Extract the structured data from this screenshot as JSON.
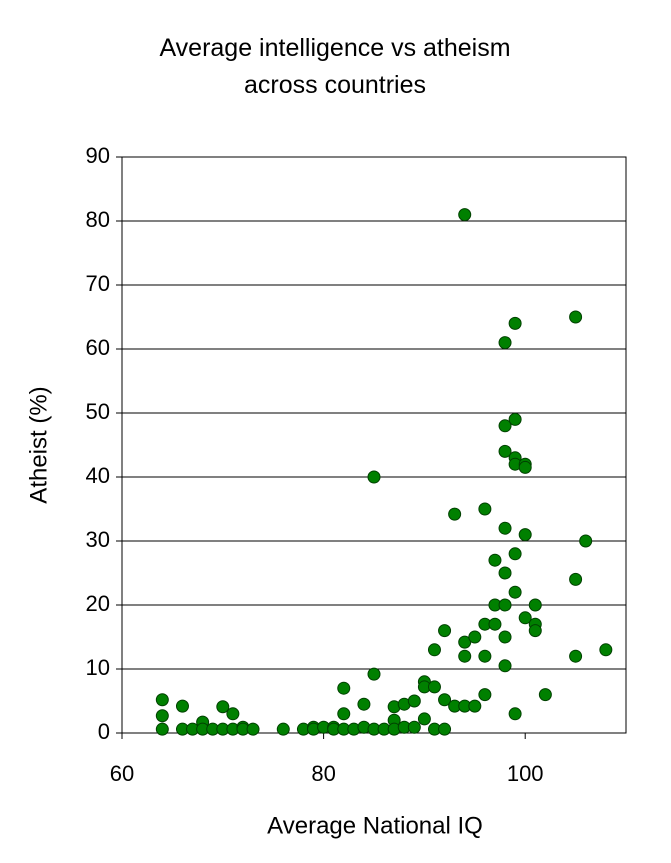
{
  "chart_data": {
    "type": "scatter",
    "title": "Average intelligence vs atheism across countries",
    "x_label": "Average National IQ",
    "y_label": "Atheist (%)",
    "color": "#008000",
    "grid": true,
    "xlim": [
      60,
      110
    ],
    "xticks": [
      60,
      80,
      100
    ],
    "ylim": [
      0,
      90
    ],
    "yticks": [
      0,
      10,
      20,
      30,
      40,
      50,
      60,
      70,
      80,
      90
    ],
    "x": [
      64,
      64,
      64,
      66,
      66,
      67,
      68,
      68,
      69,
      70,
      70,
      71,
      71,
      72,
      72,
      73,
      76,
      78,
      79,
      79,
      80,
      81,
      81,
      82,
      82,
      82,
      83,
      84,
      84,
      85,
      85,
      85,
      86,
      87,
      87,
      87,
      88,
      88,
      89,
      89,
      90,
      90,
      90,
      91,
      91,
      91,
      92,
      92,
      92,
      93,
      93,
      94,
      94,
      94,
      94,
      95,
      95,
      96,
      96,
      96,
      96,
      97,
      97,
      97,
      98,
      98,
      98,
      98,
      98,
      98,
      98,
      98,
      99,
      99,
      99,
      99,
      99,
      99,
      99,
      100,
      100,
      100,
      100,
      101,
      101,
      101,
      102,
      105,
      105,
      105,
      106,
      108
    ],
    "y": [
      5.2,
      2.7,
      0.6,
      4.2,
      0.6,
      0.6,
      1.7,
      0.6,
      0.6,
      4.1,
      0.6,
      3,
      0.6,
      0.9,
      0.6,
      0.6,
      0.6,
      0.6,
      0.9,
      0.6,
      0.9,
      0.9,
      0.6,
      7,
      3,
      0.6,
      0.6,
      4.5,
      0.9,
      40,
      9.2,
      0.6,
      0.6,
      2,
      4.1,
      0.6,
      4.5,
      0.9,
      5,
      0.9,
      8,
      7.2,
      2.2,
      13,
      7.2,
      0.6,
      16,
      5.2,
      0.6,
      34.2,
      4.2,
      81,
      14.2,
      12,
      4.2,
      15,
      4.2,
      35,
      17,
      12,
      6,
      27,
      20,
      17,
      61,
      48,
      44,
      32,
      25,
      20,
      15,
      10.5,
      64,
      49,
      43,
      42,
      28,
      22,
      3,
      42,
      41.5,
      31,
      18,
      20,
      17,
      16,
      6,
      65,
      24,
      12,
      30,
      13
    ]
  }
}
